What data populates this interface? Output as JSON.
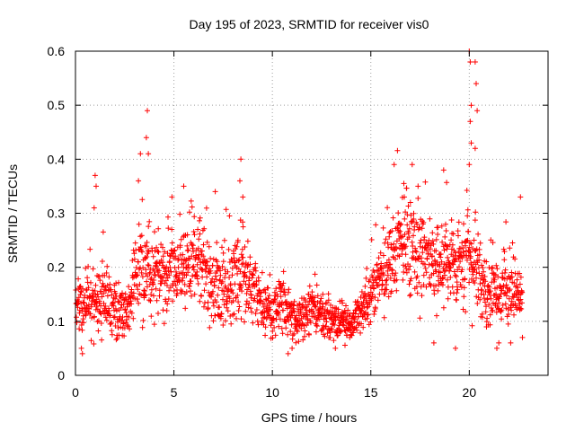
{
  "colors": {
    "series": "#ff0000",
    "grid": "#a0a0a0",
    "axis": "#000000"
  },
  "chart_data": {
    "type": "scatter",
    "marker": "plus",
    "title": "Day 195 of 2023, SRMTID for receiver vis0",
    "xlabel": "GPS time / hours",
    "ylabel": "SRMTID / TECUs",
    "xlim": [
      0,
      24
    ],
    "ylim": [
      0,
      0.6
    ],
    "xticks": [
      0,
      5,
      10,
      15,
      20
    ],
    "yticks": [
      0,
      0.1,
      0.2,
      0.3,
      0.4,
      0.5,
      0.6
    ],
    "xtick_labels": [
      "0",
      "5",
      "10",
      "15",
      "20"
    ],
    "ytick_labels": [
      "0",
      "0.1",
      "0.2",
      "0.3",
      "0.4",
      "0.5",
      "0.6"
    ],
    "grid": true,
    "series": [
      {
        "name": "vis0",
        "baseline_profile": {
          "x": [
            0,
            0.5,
            1,
            1.5,
            2,
            2.5,
            3,
            3.5,
            4,
            4.5,
            5,
            5.5,
            6,
            6.5,
            7,
            7.5,
            8,
            8.5,
            9,
            9.5,
            10,
            10.5,
            11,
            11.5,
            12,
            12.5,
            13,
            13.5,
            14,
            14.5,
            15,
            15.5,
            16,
            16.5,
            17,
            17.5,
            18,
            18.5,
            19,
            19.5,
            20,
            20.5,
            21,
            21.5,
            22,
            22.5
          ],
          "y": [
            0.14,
            0.13,
            0.14,
            0.13,
            0.12,
            0.11,
            0.17,
            0.2,
            0.19,
            0.18,
            0.19,
            0.2,
            0.21,
            0.2,
            0.16,
            0.15,
            0.17,
            0.2,
            0.17,
            0.12,
            0.12,
            0.13,
            0.11,
            0.11,
            0.12,
            0.11,
            0.1,
            0.1,
            0.09,
            0.12,
            0.14,
            0.18,
            0.22,
            0.25,
            0.24,
            0.22,
            0.21,
            0.2,
            0.2,
            0.2,
            0.22,
            0.18,
            0.14,
            0.16,
            0.16,
            0.15
          ],
          "spread": [
            0.04,
            0.05,
            0.06,
            0.05,
            0.05,
            0.05,
            0.07,
            0.08,
            0.07,
            0.07,
            0.07,
            0.07,
            0.07,
            0.07,
            0.06,
            0.06,
            0.07,
            0.08,
            0.06,
            0.04,
            0.04,
            0.05,
            0.04,
            0.04,
            0.04,
            0.04,
            0.03,
            0.03,
            0.03,
            0.04,
            0.05,
            0.07,
            0.08,
            0.08,
            0.08,
            0.08,
            0.07,
            0.07,
            0.07,
            0.07,
            0.08,
            0.07,
            0.05,
            0.06,
            0.06,
            0.06
          ]
        },
        "peaks": [
          {
            "x": 0.3,
            "y": 0.05
          },
          {
            "x": 0.35,
            "y": 0.04
          },
          {
            "x": 1.0,
            "y": 0.37
          },
          {
            "x": 1.05,
            "y": 0.35
          },
          {
            "x": 0.95,
            "y": 0.31
          },
          {
            "x": 3.3,
            "y": 0.41
          },
          {
            "x": 3.6,
            "y": 0.44
          },
          {
            "x": 3.65,
            "y": 0.49
          },
          {
            "x": 3.7,
            "y": 0.41
          },
          {
            "x": 3.2,
            "y": 0.36
          },
          {
            "x": 4.9,
            "y": 0.33
          },
          {
            "x": 5.5,
            "y": 0.35
          },
          {
            "x": 7.1,
            "y": 0.34
          },
          {
            "x": 8.4,
            "y": 0.4
          },
          {
            "x": 8.35,
            "y": 0.36
          },
          {
            "x": 8.5,
            "y": 0.33
          },
          {
            "x": 10.8,
            "y": 0.04
          },
          {
            "x": 11.0,
            "y": 0.05
          },
          {
            "x": 13.2,
            "y": 0.05
          },
          {
            "x": 16.7,
            "y": 0.33
          },
          {
            "x": 17.1,
            "y": 0.39
          },
          {
            "x": 17.4,
            "y": 0.35
          },
          {
            "x": 18.7,
            "y": 0.38
          },
          {
            "x": 18.2,
            "y": 0.06
          },
          {
            "x": 19.3,
            "y": 0.05
          },
          {
            "x": 20.0,
            "y": 0.6
          },
          {
            "x": 20.05,
            "y": 0.58
          },
          {
            "x": 20.1,
            "y": 0.5
          },
          {
            "x": 20.05,
            "y": 0.47
          },
          {
            "x": 20.1,
            "y": 0.43
          },
          {
            "x": 20.3,
            "y": 0.58
          },
          {
            "x": 20.35,
            "y": 0.54
          },
          {
            "x": 20.4,
            "y": 0.49
          },
          {
            "x": 20.3,
            "y": 0.42
          },
          {
            "x": 20.0,
            "y": 0.39
          },
          {
            "x": 21.4,
            "y": 0.05
          },
          {
            "x": 21.5,
            "y": 0.06
          },
          {
            "x": 22.1,
            "y": 0.06
          },
          {
            "x": 22.6,
            "y": 0.33
          },
          {
            "x": 22.7,
            "y": 0.07
          }
        ]
      }
    ]
  }
}
